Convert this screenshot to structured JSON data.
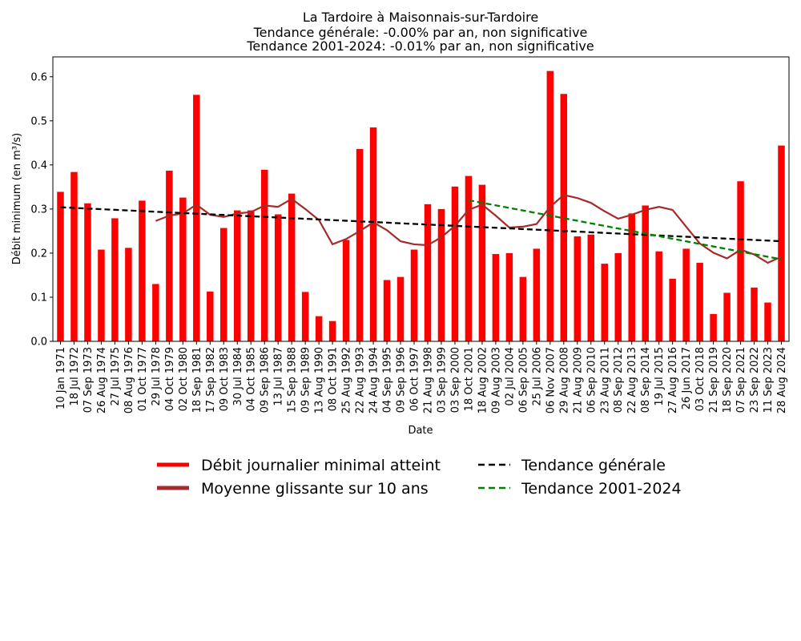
{
  "chart_data": {
    "type": "bar",
    "title_lines": [
      "La Tardoire à Maisonnais-sur-Tardoire",
      "Tendance générale: -0.00% par an, non significative",
      "Tendance 2001-2024: -0.01% par an, non significative"
    ],
    "xlabel": "Date",
    "ylabel": "Débit minimum (en m³/s)",
    "ylim": [
      0,
      0.645
    ],
    "yticks": [
      "0.0",
      "0.1",
      "0.2",
      "0.3",
      "0.4",
      "0.5",
      "0.6"
    ],
    "categories": [
      "10 Jan 1971",
      "18 Jul 1972",
      "07 Sep 1973",
      "26 Aug 1974",
      "27 Jul 1975",
      "08 Aug 1976",
      "01 Oct 1977",
      "29 Jul 1978",
      "04 Oct 1979",
      "02 Oct 1980",
      "18 Sep 1981",
      "17 Sep 1982",
      "09 Oct 1983",
      "30 Jul 1984",
      "04 Oct 1985",
      "09 Sep 1986",
      "13 Jul 1987",
      "15 Sep 1988",
      "09 Sep 1989",
      "13 Aug 1990",
      "08 Oct 1991",
      "25 Aug 1992",
      "22 Aug 1993",
      "24 Aug 1994",
      "04 Sep 1995",
      "09 Sep 1996",
      "06 Oct 1997",
      "21 Aug 1998",
      "03 Sep 1999",
      "03 Sep 2000",
      "18 Oct 2001",
      "18 Aug 2002",
      "09 Aug 2003",
      "02 Jul 2004",
      "06 Sep 2005",
      "25 Jul 2006",
      "06 Nov 2007",
      "29 Aug 2008",
      "21 Aug 2009",
      "06 Sep 2010",
      "23 Aug 2011",
      "08 Sep 2012",
      "22 Aug 2013",
      "08 Sep 2014",
      "19 Jul 2015",
      "27 Aug 2016",
      "26 Jun 2017",
      "03 Oct 2018",
      "21 Sep 2019",
      "18 Sep 2020",
      "07 Sep 2021",
      "23 Sep 2022",
      "11 Sep 2023",
      "28 Aug 2024"
    ],
    "series": [
      {
        "name": "Débit journalier minimal atteint",
        "kind": "bar",
        "color": "#ff0000",
        "values": [
          0.339,
          0.384,
          0.313,
          0.208,
          0.279,
          0.212,
          0.319,
          0.13,
          0.387,
          0.326,
          0.559,
          0.113,
          0.257,
          0.297,
          0.297,
          0.389,
          0.288,
          0.335,
          0.112,
          0.057,
          0.046,
          0.23,
          0.436,
          0.485,
          0.139,
          0.146,
          0.208,
          0.311,
          0.3,
          0.351,
          0.375,
          0.355,
          0.198,
          0.2,
          0.146,
          0.21,
          0.613,
          0.561,
          0.238,
          0.242,
          0.176,
          0.2,
          0.29,
          0.308,
          0.204,
          0.142,
          0.21,
          0.178,
          0.062,
          0.11,
          0.363,
          0.122,
          0.088,
          0.444
        ]
      },
      {
        "name": "Moyenne glissante sur 10 ans",
        "kind": "line",
        "color": "#a52a2a",
        "values": [
          null,
          null,
          null,
          null,
          null,
          null,
          null,
          0.273,
          0.285,
          0.29,
          0.31,
          0.287,
          0.282,
          0.29,
          0.293,
          0.308,
          0.305,
          0.323,
          0.3,
          0.275,
          0.22,
          0.232,
          0.25,
          0.27,
          0.252,
          0.227,
          0.22,
          0.218,
          0.236,
          0.262,
          0.298,
          0.31,
          0.285,
          0.258,
          0.26,
          0.266,
          0.305,
          0.332,
          0.325,
          0.314,
          0.295,
          0.278,
          0.287,
          0.298,
          0.305,
          0.298,
          0.26,
          0.222,
          0.201,
          0.188,
          0.208,
          0.197,
          0.178,
          0.192
        ]
      },
      {
        "name": "Tendance générale",
        "kind": "dashed-line",
        "color": "#000000",
        "start_index": 0,
        "end_index": 53,
        "start_value": 0.304,
        "end_value": 0.227
      },
      {
        "name": "Tendance 2001-2024",
        "kind": "dashed-line",
        "color": "#008000",
        "start_index": 30,
        "end_index": 53,
        "start_value": 0.32,
        "end_value": 0.186
      }
    ],
    "legend": {
      "placement": "bottom",
      "entries": [
        {
          "label": "Débit journalier minimal atteint",
          "color": "#ff0000",
          "style": "solid-thick"
        },
        {
          "label": "Moyenne glissante sur 10 ans",
          "color": "#a52a2a",
          "style": "solid-thick"
        },
        {
          "label": "Tendance générale",
          "color": "#000000",
          "style": "dashed"
        },
        {
          "label": "Tendance 2001-2024",
          "color": "#008000",
          "style": "dashed"
        }
      ]
    }
  }
}
